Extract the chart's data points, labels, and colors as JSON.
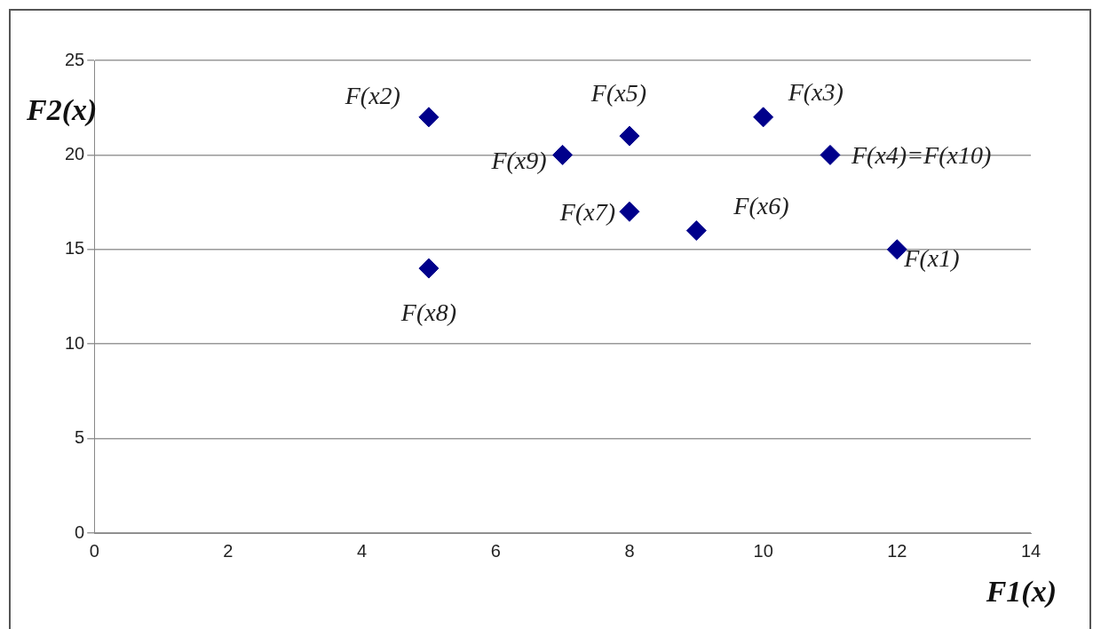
{
  "chart_data": {
    "type": "scatter",
    "xlabel": "F1(x)",
    "ylabel": "F2(x)",
    "x": [
      12,
      5,
      10,
      11,
      8,
      9,
      8,
      5,
      7
    ],
    "values": [
      15,
      22,
      22,
      20,
      21,
      16,
      17,
      14,
      20
    ],
    "color": "#00008b",
    "marker": "diamond",
    "grid": "y",
    "legend": false,
    "xlim": [
      0,
      14
    ],
    "xticks": [
      0,
      2,
      4,
      6,
      8,
      10,
      12,
      14
    ],
    "ylim": [
      0,
      25
    ],
    "yticks": [
      0,
      5,
      10,
      15,
      20,
      25
    ],
    "annotations": [
      {
        "text": "F(x1)",
        "x": 12,
        "y": 15
      },
      {
        "text": "F(x2)",
        "x": 5,
        "y": 22
      },
      {
        "text": "F(x3)",
        "x": 10,
        "y": 22
      },
      {
        "text": "F(x4)=F(x10)",
        "x": 11,
        "y": 20
      },
      {
        "text": "F(x5)",
        "x": 8,
        "y": 21
      },
      {
        "text": "F(x6)",
        "x": 9,
        "y": 16
      },
      {
        "text": "F(x7)",
        "x": 8,
        "y": 17
      },
      {
        "text": "F(x8)",
        "x": 5,
        "y": 14
      },
      {
        "text": "F(x9)",
        "x": 7,
        "y": 20
      }
    ]
  }
}
